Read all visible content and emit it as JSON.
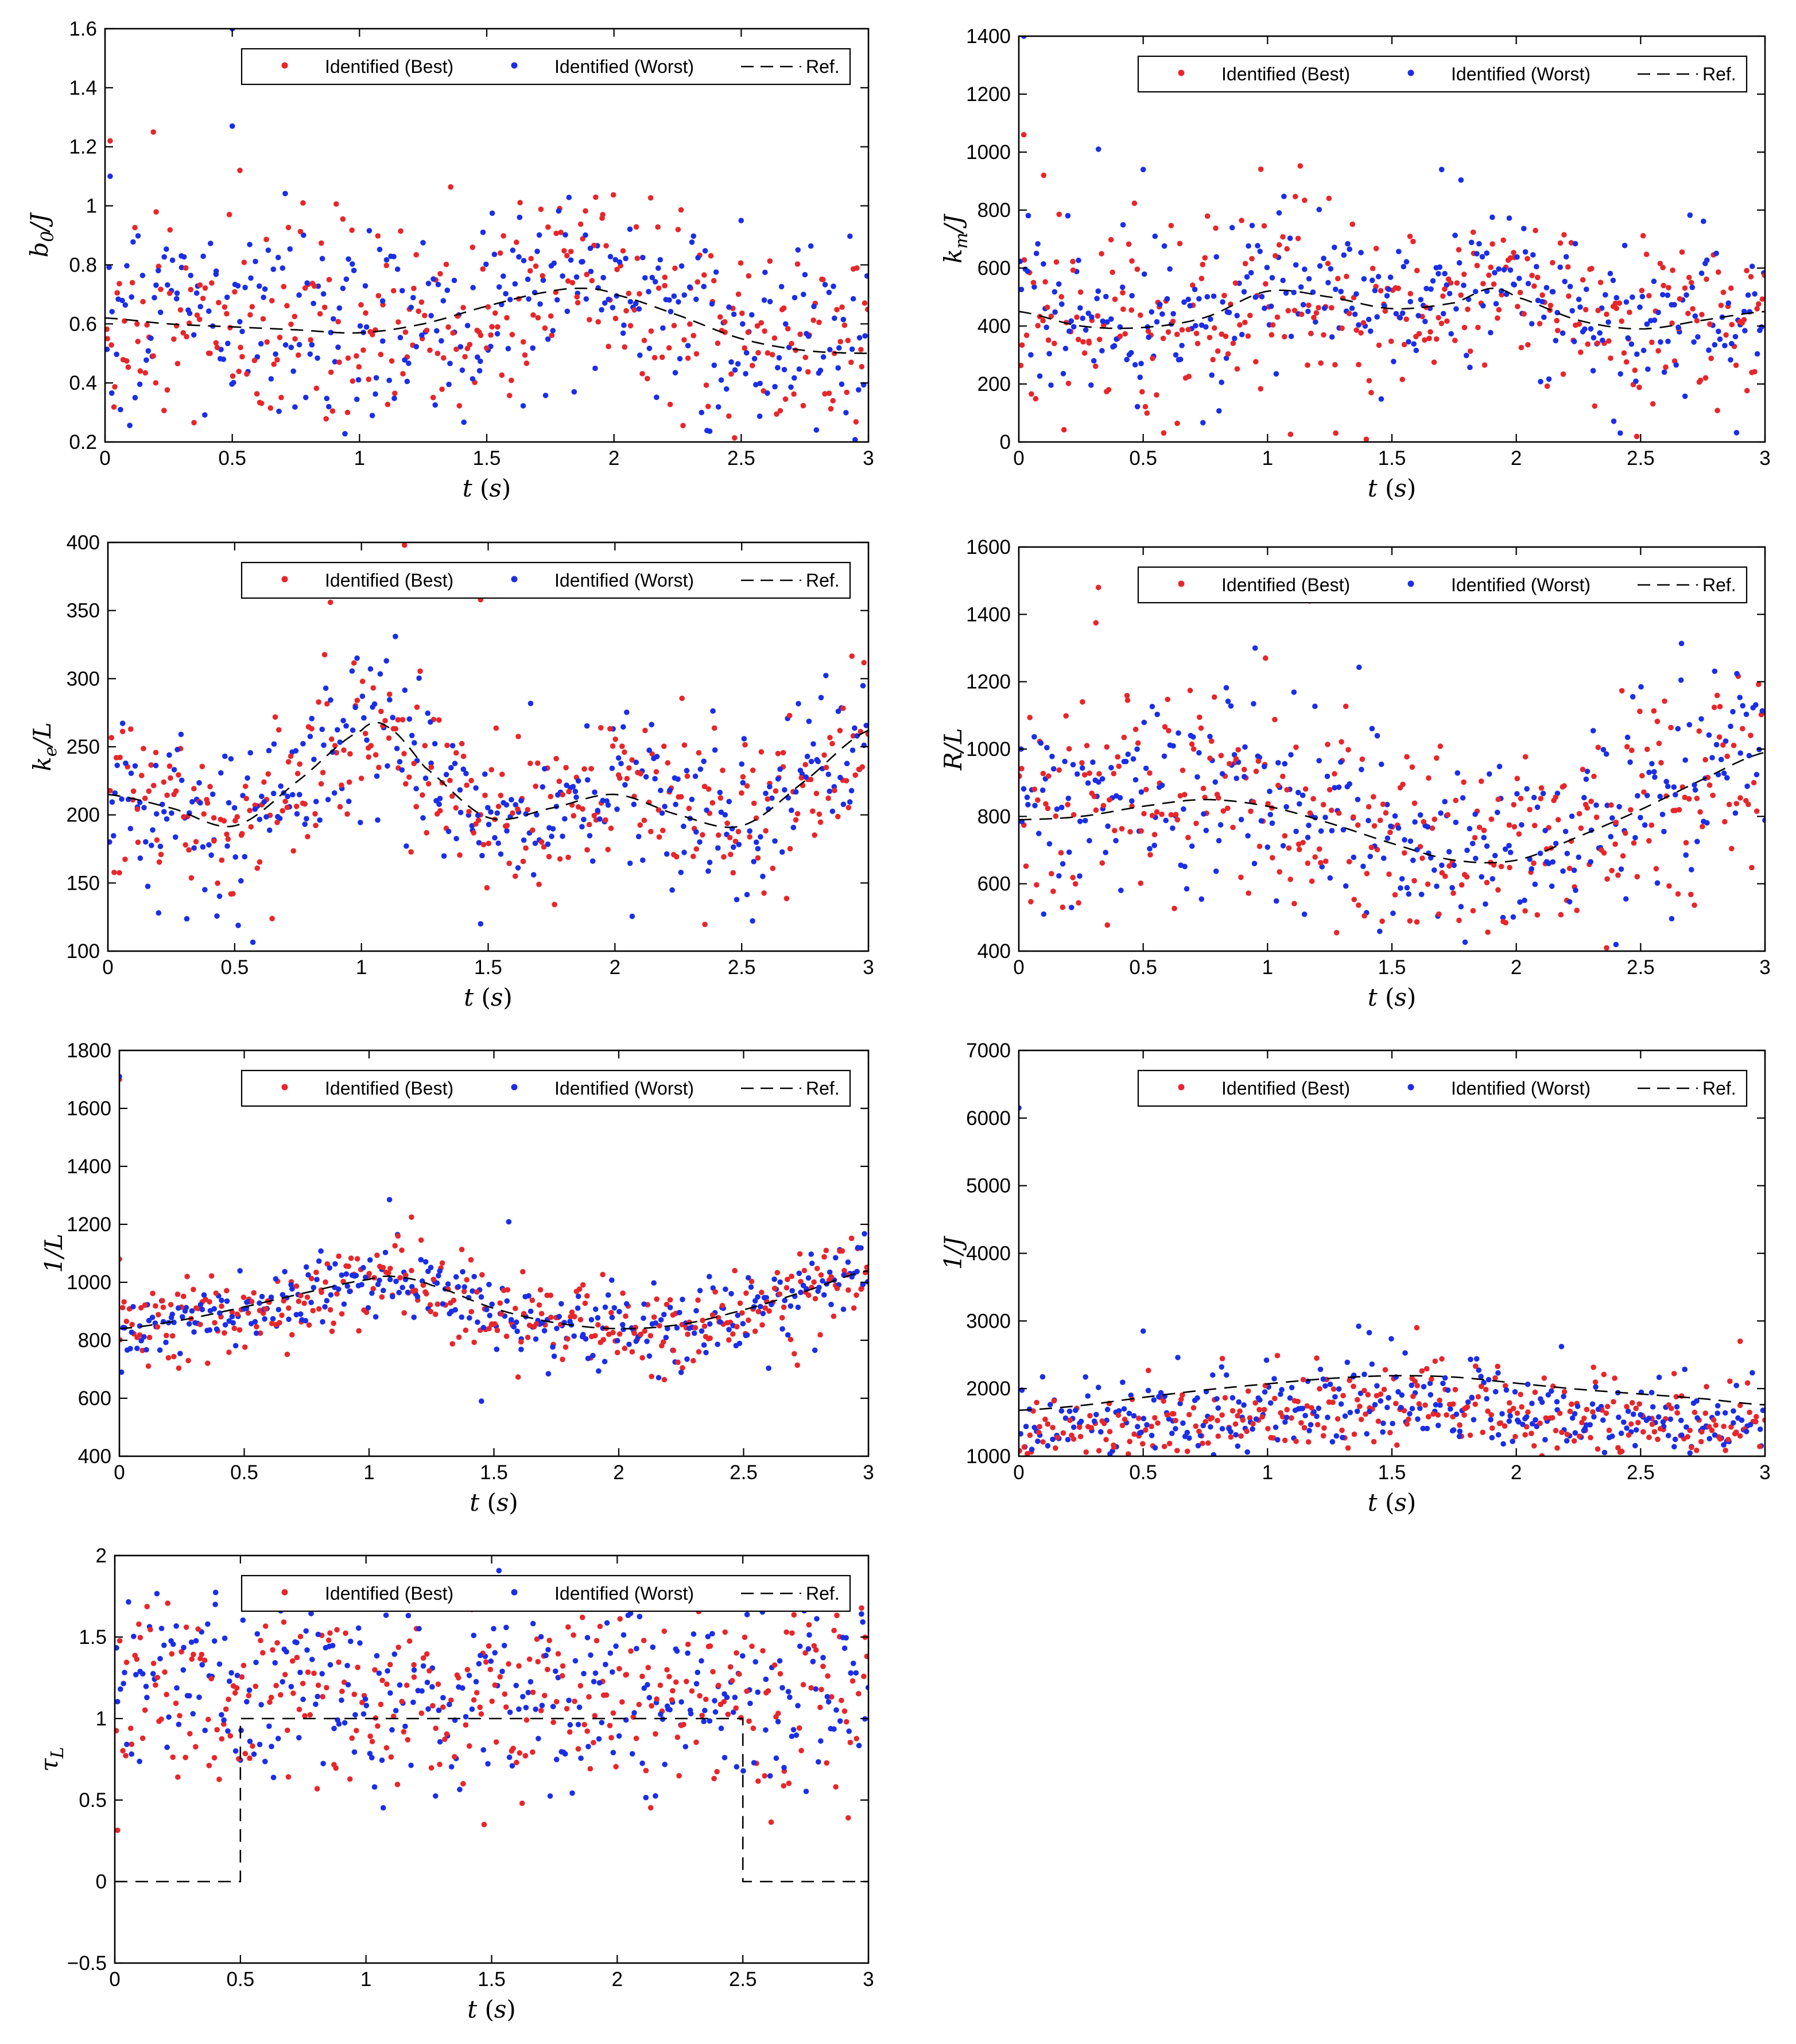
{
  "chart_data": [
    {
      "type": "scatter",
      "ylabel": "b_0/J",
      "xlabel": "t (s)",
      "xlim": [
        0,
        3
      ],
      "ylim": [
        0.2,
        1.6
      ],
      "xticks": [
        0,
        0.5,
        1,
        1.5,
        2,
        2.5,
        3
      ],
      "xtick_labels": [
        "0",
        "0.5",
        "1",
        "1.5",
        "2",
        "2.5",
        "3"
      ],
      "yticks": [
        0.2,
        0.4,
        0.6,
        0.8,
        1,
        1.2,
        1.4,
        1.6
      ],
      "ytick_labels": [
        "0.2",
        "0.4",
        "0.6",
        "0.8",
        "1",
        "1.2",
        "1.4",
        "1.6"
      ],
      "legend": [
        "Identified (Best)",
        "Identified (Worst)",
        "Ref."
      ],
      "legend_placement": "top-right",
      "ref": {
        "kind": "smooth",
        "x": [
          0,
          0.25,
          0.5,
          0.75,
          1,
          1.25,
          1.5,
          1.75,
          1.9,
          2,
          2.25,
          2.5,
          2.75,
          3
        ],
        "y": [
          0.62,
          0.6,
          0.59,
          0.58,
          0.57,
          0.6,
          0.66,
          0.71,
          0.72,
          0.7,
          0.63,
          0.55,
          0.51,
          0.5
        ]
      },
      "noise": {
        "sigma_best": 0.17,
        "sigma_worst": 0.16,
        "bias_best": 0.0,
        "bias_worst": 0.02
      },
      "outliers_best": [
        [
          0.02,
          1.22
        ],
        [
          0.19,
          1.25
        ],
        [
          0.53,
          1.12
        ]
      ],
      "outliers_worst": [
        [
          0.5,
          1.6
        ],
        [
          0.5,
          1.27
        ],
        [
          0.02,
          1.1
        ]
      ]
    },
    {
      "type": "scatter",
      "ylabel": "k_m/J",
      "xlabel": "t (s)",
      "xlim": [
        0,
        3
      ],
      "ylim": [
        0,
        1400
      ],
      "xticks": [
        0,
        0.5,
        1,
        1.5,
        2,
        2.5,
        3
      ],
      "xtick_labels": [
        "0",
        "0.5",
        "1",
        "1.5",
        "2",
        "2.5",
        "3"
      ],
      "yticks": [
        0,
        200,
        400,
        600,
        800,
        1000,
        1200,
        1400
      ],
      "ytick_labels": [
        "0",
        "200",
        "400",
        "600",
        "800",
        "1000",
        "1200",
        "1400"
      ],
      "legend": [
        "Identified (Best)",
        "Identified (Worst)",
        "Ref."
      ],
      "legend_placement": "top-right",
      "ref": {
        "kind": "smooth",
        "x": [
          0,
          0.25,
          0.5,
          0.75,
          1,
          1.25,
          1.5,
          1.75,
          1.9,
          2,
          2.25,
          2.5,
          2.75,
          3
        ],
        "y": [
          450,
          400,
          395,
          430,
          520,
          500,
          460,
          480,
          530,
          500,
          420,
          390,
          420,
          450
        ]
      },
      "noise": {
        "sigma_best": 140,
        "sigma_worst": 130,
        "bias_best": 0,
        "bias_worst": 10
      },
      "outliers_best": [
        [
          0.02,
          1060
        ],
        [
          0.1,
          920
        ]
      ],
      "outliers_worst": [
        [
          0.02,
          1400
        ],
        [
          0.32,
          1010
        ],
        [
          0.5,
          940
        ],
        [
          1.7,
          940
        ]
      ]
    },
    {
      "type": "scatter",
      "ylabel": "k_e/L",
      "xlabel": "t (s)",
      "xlim": [
        0,
        3
      ],
      "ylim": [
        100,
        400
      ],
      "xticks": [
        0,
        0.5,
        1,
        1.5,
        2,
        2.5,
        3
      ],
      "xtick_labels": [
        "0",
        "0.5",
        "1",
        "1.5",
        "2",
        "2.5",
        "3"
      ],
      "yticks": [
        100,
        150,
        200,
        250,
        300,
        350,
        400
      ],
      "ytick_labels": [
        "100",
        "150",
        "200",
        "250",
        "300",
        "350",
        "400"
      ],
      "legend": [
        "Identified (Best)",
        "Identified (Worst)",
        "Ref."
      ],
      "legend_placement": "top-right",
      "ref": {
        "kind": "smooth",
        "x": [
          0,
          0.25,
          0.5,
          0.75,
          1,
          1.1,
          1.25,
          1.5,
          1.75,
          2,
          2.25,
          2.5,
          2.75,
          3
        ],
        "y": [
          215,
          205,
          192,
          225,
          262,
          265,
          235,
          198,
          205,
          215,
          200,
          192,
          225,
          262
        ]
      },
      "noise": {
        "sigma_best": 30,
        "sigma_worst": 30,
        "bias_best": 0,
        "bias_worst": 0
      },
      "outliers_best": [
        [
          1.17,
          398
        ],
        [
          1.47,
          358
        ]
      ],
      "outliers_worst": [
        [
          1.47,
          120
        ],
        [
          0.2,
          128
        ]
      ]
    },
    {
      "type": "scatter",
      "ylabel": "R/L",
      "xlabel": "t (s)",
      "xlim": [
        0,
        3
      ],
      "ylim": [
        400,
        1600
      ],
      "xticks": [
        0,
        0.5,
        1,
        1.5,
        2,
        2.5,
        3
      ],
      "xtick_labels": [
        "0",
        "0.5",
        "1",
        "1.5",
        "2",
        "2.5",
        "3"
      ],
      "yticks": [
        400,
        600,
        800,
        1000,
        1200,
        1400,
        1600
      ],
      "ytick_labels": [
        "400",
        "600",
        "800",
        "1000",
        "1200",
        "1400",
        "1600"
      ],
      "legend": [
        "Identified (Best)",
        "Identified (Worst)",
        "Ref."
      ],
      "legend_placement": "top-right",
      "ref": {
        "kind": "smooth",
        "x": [
          0,
          0.25,
          0.5,
          0.75,
          1,
          1.25,
          1.5,
          1.75,
          2,
          2.25,
          2.5,
          2.75,
          3
        ],
        "y": [
          790,
          800,
          830,
          850,
          830,
          780,
          720,
          670,
          670,
          740,
          820,
          910,
          990
        ]
      },
      "noise": {
        "sigma_best": 150,
        "sigma_worst": 140,
        "bias_best": 20,
        "bias_worst": 30
      },
      "outliers_best": [
        [
          0.32,
          1480
        ],
        [
          0.31,
          1375
        ],
        [
          1.17,
          1440
        ]
      ],
      "outliers_worst": [
        [
          0.1,
          510
        ],
        [
          0.95,
          1300
        ]
      ]
    },
    {
      "type": "scatter",
      "ylabel": "1/L",
      "xlabel": "t (s)",
      "xlim": [
        0,
        3
      ],
      "ylim": [
        400,
        1800
      ],
      "xticks": [
        0,
        0.5,
        1,
        1.5,
        2,
        2.5,
        3
      ],
      "xtick_labels": [
        "0",
        "0.5",
        "1",
        "1.5",
        "2",
        "2.5",
        "3"
      ],
      "yticks": [
        400,
        600,
        800,
        1000,
        1200,
        1400,
        1600,
        1800
      ],
      "ytick_labels": [
        "400",
        "600",
        "800",
        "1000",
        "1200",
        "1400",
        "1600",
        "1800"
      ],
      "legend": [
        "Identified (Best)",
        "Identified (Worst)",
        "Ref."
      ],
      "legend_placement": "top-right",
      "ref": {
        "kind": "smooth",
        "x": [
          0,
          0.25,
          0.5,
          0.75,
          1,
          1.1,
          1.25,
          1.5,
          1.75,
          2,
          2.25,
          2.5,
          2.75,
          3
        ],
        "y": [
          840,
          870,
          915,
          965,
          1010,
          1020,
          990,
          910,
          860,
          840,
          855,
          905,
          970,
          1040
        ]
      },
      "noise": {
        "sigma_best": 70,
        "sigma_worst": 65,
        "bias_best": -10,
        "bias_worst": -10
      },
      "outliers_best": [
        [
          0.0,
          1080
        ],
        [
          1.17,
          1225
        ],
        [
          0.0,
          1700
        ]
      ],
      "outliers_worst": [
        [
          1.45,
          590
        ],
        [
          0.0,
          1710
        ]
      ]
    },
    {
      "type": "scatter",
      "ylabel": "1/J",
      "xlabel": "t (s)",
      "xlim": [
        0,
        3
      ],
      "ylim": [
        1000,
        7000
      ],
      "xticks": [
        0,
        0.5,
        1,
        1.5,
        2,
        2.5,
        3
      ],
      "xtick_labels": [
        "0",
        "0.5",
        "1",
        "1.5",
        "2",
        "2.5",
        "3"
      ],
      "yticks": [
        1000,
        2000,
        3000,
        4000,
        5000,
        6000,
        7000
      ],
      "ytick_labels": [
        "1000",
        "2000",
        "3000",
        "4000",
        "5000",
        "6000",
        "7000"
      ],
      "legend": [
        "Identified (Best)",
        "Identified (Worst)",
        "Ref."
      ],
      "legend_placement": "top-right",
      "ref": {
        "kind": "smooth",
        "x": [
          0,
          0.25,
          0.5,
          0.75,
          1,
          1.25,
          1.5,
          1.75,
          2,
          2.25,
          2.5,
          2.75,
          3
        ],
        "y": [
          1680,
          1750,
          1870,
          1980,
          2070,
          2150,
          2190,
          2170,
          2080,
          1990,
          1920,
          1850,
          1760
        ]
      },
      "noise": {
        "sigma_best": 300,
        "sigma_worst": 300,
        "bias_best": -450,
        "bias_worst": -400
      },
      "outliers_best": [
        [
          1.6,
          2900
        ],
        [
          2.9,
          2700
        ]
      ],
      "outliers_worst": [
        [
          0.0,
          6150
        ],
        [
          0.5,
          2850
        ]
      ]
    },
    {
      "type": "scatter",
      "ylabel": "τ_L",
      "xlabel": "t (s)",
      "xlim": [
        0,
        3
      ],
      "ylim": [
        -0.5,
        2
      ],
      "xticks": [
        0,
        0.5,
        1,
        1.5,
        2,
        2.5,
        3
      ],
      "xtick_labels": [
        "0",
        "0.5",
        "1",
        "1.5",
        "2",
        "2.5",
        "3"
      ],
      "yticks": [
        -0.5,
        0,
        0.5,
        1,
        1.5,
        2
      ],
      "ytick_labels": [
        "−0.5",
        "0",
        "0.5",
        "1",
        "1.5",
        "2"
      ],
      "legend": [
        "Identified (Best)",
        "Identified (Worst)",
        "Ref."
      ],
      "legend_placement": "top-right",
      "ref": {
        "kind": "step",
        "x": [
          0,
          0.5,
          0.5,
          2.5,
          2.5,
          3
        ],
        "y": [
          0,
          0,
          1,
          1,
          0,
          0
        ]
      },
      "noise": {
        "sigma_best": 0.3,
        "sigma_worst": 0.3,
        "bias_center": 1.15
      },
      "outliers_best": [
        [
          1.47,
          0.35
        ]
      ],
      "outliers_worst": [
        [
          0.4,
          1.7
        ]
      ]
    }
  ],
  "colors": {
    "best": "#e8262a",
    "worst": "#1a2ee8",
    "ref": "#000000"
  }
}
